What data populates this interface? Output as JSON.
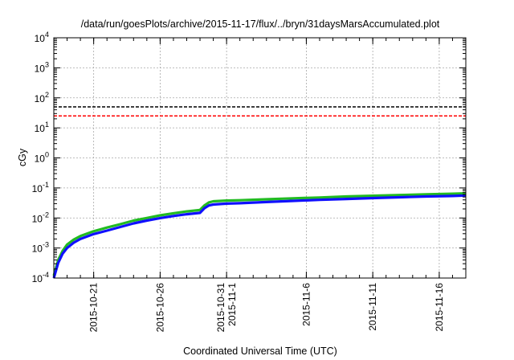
{
  "chart_data": {
    "type": "line",
    "title": "/data/run/goesPlots/archive/2015-11-17/flux/../bryn/31daysMarsAccumulated.plot",
    "xlabel": "Coordinated Universal Time (UTC)",
    "ylabel": "cGy",
    "yscale": "log",
    "ylim": [
      0.0001,
      10000
    ],
    "xlim": [
      "2015-10-18",
      "2015-11-18"
    ],
    "grid": true,
    "x_ticks": [
      {
        "date": "2015-10-21",
        "lines": [
          "2015-10-21"
        ]
      },
      {
        "date": "2015-10-26",
        "lines": [
          "2015-10-26"
        ]
      },
      {
        "date": "2015-10-31",
        "lines": [
          "2015-10-31",
          "2015-11-1"
        ]
      },
      {
        "date": "2015-11-06",
        "lines": [
          "2015-11-6"
        ]
      },
      {
        "date": "2015-11-11",
        "lines": [
          "2015-11-11"
        ]
      },
      {
        "date": "2015-11-16",
        "lines": [
          "2015-11-16"
        ]
      }
    ],
    "y_ticks": [
      {
        "value": 0.0001,
        "base": "10",
        "exp": "-4"
      },
      {
        "value": 0.001,
        "base": "10",
        "exp": "-3"
      },
      {
        "value": 0.01,
        "base": "10",
        "exp": "-2"
      },
      {
        "value": 0.1,
        "base": "10",
        "exp": "-1"
      },
      {
        "value": 1,
        "base": "10",
        "exp": "0"
      },
      {
        "value": 10,
        "base": "10",
        "exp": "1"
      },
      {
        "value": 100,
        "base": "10",
        "exp": "2"
      },
      {
        "value": 1000,
        "base": "10",
        "exp": "3"
      },
      {
        "value": 10000,
        "base": "10",
        "exp": "4"
      }
    ],
    "reference_lines": [
      {
        "y": 50,
        "color": "#000000"
      },
      {
        "y": 25,
        "color": "#ff0000"
      }
    ],
    "series": [
      {
        "color": "#22bb22",
        "x": [
          "2015-10-18",
          "2015-10-18 08:00",
          "2015-10-18 16:00",
          "2015-10-19",
          "2015-10-19 12:00",
          "2015-10-20",
          "2015-10-21",
          "2015-10-22",
          "2015-10-23",
          "2015-10-24",
          "2015-10-25",
          "2015-10-26",
          "2015-10-27",
          "2015-10-28",
          "2015-10-29",
          "2015-10-29 08:00",
          "2015-10-29 16:00",
          "2015-10-30",
          "2015-10-31",
          "2015-11-01",
          "2015-11-03",
          "2015-11-05",
          "2015-11-07",
          "2015-11-09",
          "2015-11-11",
          "2015-11-13",
          "2015-11-15",
          "2015-11-17",
          "2015-11-18"
        ],
        "y": [
          0.00012,
          0.0004,
          0.0008,
          0.0013,
          0.0019,
          0.0025,
          0.0036,
          0.0048,
          0.0062,
          0.0082,
          0.01,
          0.0122,
          0.0143,
          0.0165,
          0.0185,
          0.026,
          0.033,
          0.036,
          0.038,
          0.039,
          0.042,
          0.045,
          0.048,
          0.052,
          0.055,
          0.058,
          0.061,
          0.064,
          0.066
        ]
      },
      {
        "color": "#1010ff",
        "x": [
          "2015-10-18",
          "2015-10-18 08:00",
          "2015-10-18 16:00",
          "2015-10-19",
          "2015-10-19 12:00",
          "2015-10-20",
          "2015-10-21",
          "2015-10-22",
          "2015-10-23",
          "2015-10-24",
          "2015-10-25",
          "2015-10-26",
          "2015-10-27",
          "2015-10-28",
          "2015-10-29",
          "2015-10-29 08:00",
          "2015-10-29 16:00",
          "2015-10-30",
          "2015-10-31",
          "2015-11-01",
          "2015-11-03",
          "2015-11-05",
          "2015-11-07",
          "2015-11-09",
          "2015-11-11",
          "2015-11-13",
          "2015-11-15",
          "2015-11-17",
          "2015-11-18"
        ],
        "y": [
          0.0001,
          0.00032,
          0.00065,
          0.001,
          0.0015,
          0.002,
          0.0029,
          0.0038,
          0.005,
          0.0066,
          0.0082,
          0.0099,
          0.0116,
          0.0133,
          0.0148,
          0.021,
          0.026,
          0.028,
          0.03,
          0.031,
          0.034,
          0.037,
          0.04,
          0.043,
          0.046,
          0.049,
          0.052,
          0.054,
          0.056
        ]
      }
    ]
  }
}
